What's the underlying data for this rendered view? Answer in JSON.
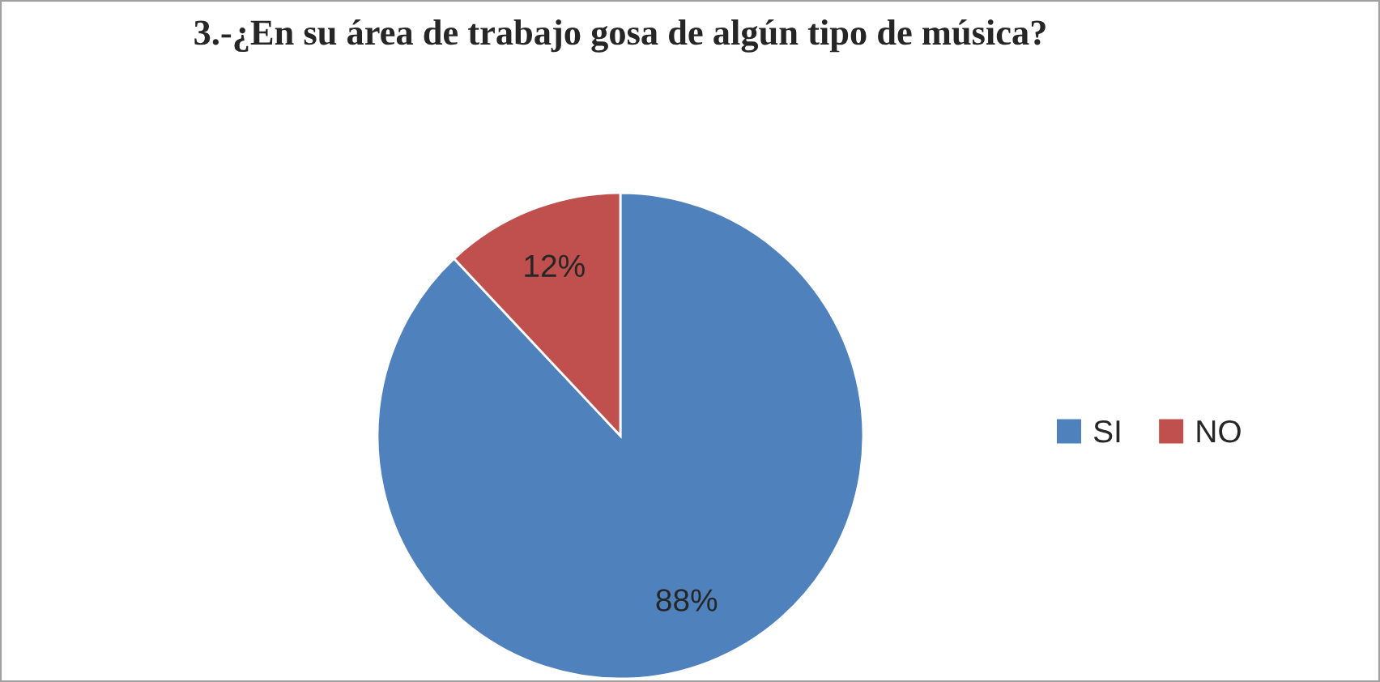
{
  "chart_data": {
    "type": "pie",
    "title": "3.-¿En su área de trabajo gosa de algún tipo de música?",
    "categories": [
      "SI",
      "NO"
    ],
    "values": [
      88,
      12
    ],
    "colors": [
      "#4f81bd",
      "#c0504d"
    ],
    "value_labels": [
      "88%",
      "12%"
    ],
    "legend": "right"
  }
}
